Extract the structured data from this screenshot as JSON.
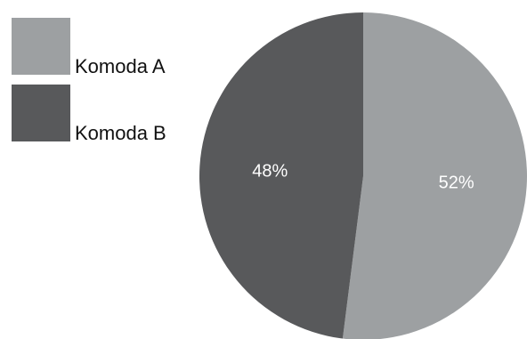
{
  "chart_data": {
    "type": "pie",
    "title": "",
    "legend_position": "top-left",
    "series": [
      {
        "values": [
          52,
          48
        ]
      }
    ],
    "categories": [
      "Komoda A",
      "Komoda B"
    ],
    "values": [
      52,
      48
    ],
    "data_labels": [
      "52%",
      "48%"
    ],
    "colors": [
      "#9da0a2",
      "#58595b"
    ],
    "start_angle_deg": 0,
    "direction": "clockwise"
  }
}
